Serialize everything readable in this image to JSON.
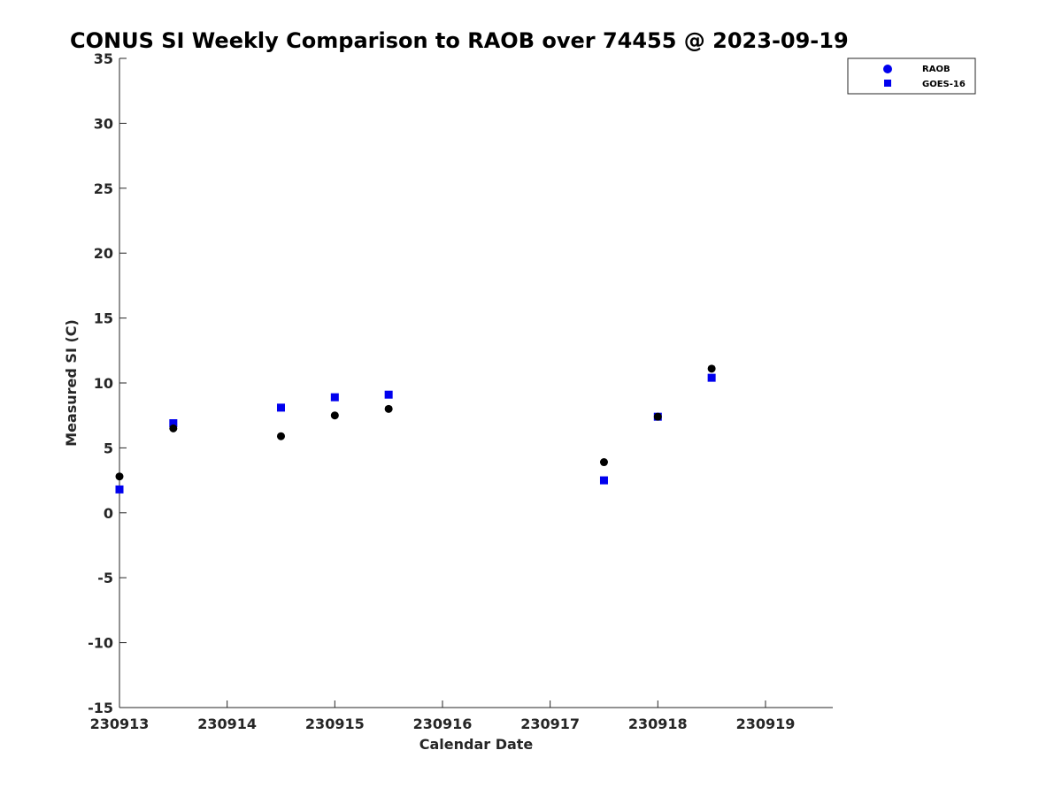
{
  "chart_data": {
    "type": "scatter",
    "title": "CONUS SI Weekly Comparison to RAOB over 74455 @ 2023-09-19",
    "xlabel": "Calendar Date",
    "ylabel": "Measured SI (C)",
    "x_is_date": true,
    "xlim": [
      "2023-09-13",
      "2023-09-19T15:00"
    ],
    "ylim": [
      -15,
      35
    ],
    "x_ticks": [
      {
        "x": "2023-09-13",
        "label": "230913"
      },
      {
        "x": "2023-09-14",
        "label": "230914"
      },
      {
        "x": "2023-09-15",
        "label": "230915"
      },
      {
        "x": "2023-09-16",
        "label": "230916"
      },
      {
        "x": "2023-09-17",
        "label": "230917"
      },
      {
        "x": "2023-09-18",
        "label": "230918"
      },
      {
        "x": "2023-09-19",
        "label": "230919"
      }
    ],
    "y_ticks": [
      -15,
      -10,
      -5,
      0,
      5,
      10,
      15,
      20,
      25,
      30,
      35
    ],
    "grid": false,
    "legend_position": "top-right",
    "series": [
      {
        "name": "RAOB",
        "marker": "circle",
        "color": "#000000",
        "legend_color": "#0000ee",
        "points": [
          {
            "x": "2023-09-13T00:00",
            "y": 2.8
          },
          {
            "x": "2023-09-13T12:00",
            "y": 6.5
          },
          {
            "x": "2023-09-14T12:00",
            "y": 5.9
          },
          {
            "x": "2023-09-15T00:00",
            "y": 7.5
          },
          {
            "x": "2023-09-15T12:00",
            "y": 8.0
          },
          {
            "x": "2023-09-17T12:00",
            "y": 3.9
          },
          {
            "x": "2023-09-18T00:00",
            "y": 7.4
          },
          {
            "x": "2023-09-18T12:00",
            "y": 11.1
          }
        ]
      },
      {
        "name": "GOES-16",
        "marker": "square",
        "color": "#0000ee",
        "legend_color": "#0000ee",
        "points": [
          {
            "x": "2023-09-13T00:00",
            "y": 1.8
          },
          {
            "x": "2023-09-13T12:00",
            "y": 6.9
          },
          {
            "x": "2023-09-14T12:00",
            "y": 8.1
          },
          {
            "x": "2023-09-15T00:00",
            "y": 8.9
          },
          {
            "x": "2023-09-15T12:00",
            "y": 9.1
          },
          {
            "x": "2023-09-17T12:00",
            "y": 2.5
          },
          {
            "x": "2023-09-18T00:00",
            "y": 7.4
          },
          {
            "x": "2023-09-18T12:00",
            "y": 10.4
          }
        ]
      }
    ]
  }
}
